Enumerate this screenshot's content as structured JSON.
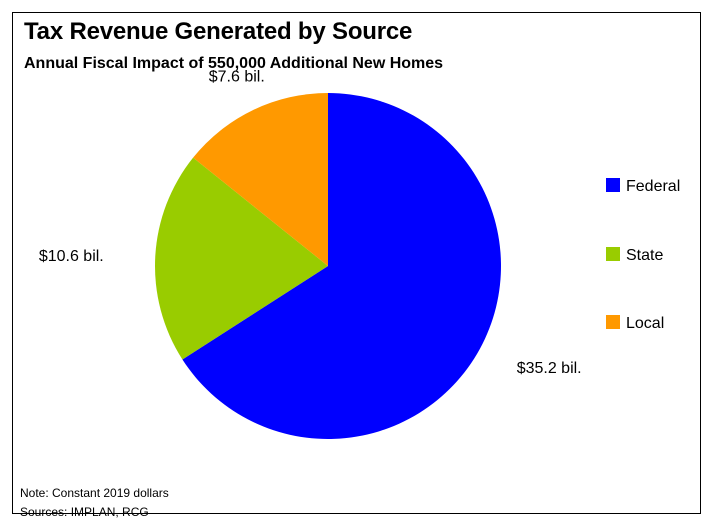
{
  "title": "Tax Revenue Generated by Source",
  "subtitle": "Annual Fiscal Impact of 550,000 Additional New Homes",
  "note": "Note: Constant 2019 dollars",
  "sources": "Sources: IMPLAN, RCG",
  "chart_data": {
    "type": "pie",
    "title": "Tax Revenue Generated by Source",
    "subtitle": "Annual Fiscal Impact of 550,000 Additional New Homes",
    "categories": [
      "Federal",
      "State",
      "Local"
    ],
    "values": [
      35.2,
      10.6,
      7.6
    ],
    "labels": [
      "$35.2 bil.",
      "$10.6 bil.",
      "$7.6 bil."
    ],
    "colors": [
      "#0000ff",
      "#99cc00",
      "#ff9900"
    ],
    "legend": {
      "entries": [
        "Federal",
        "State",
        "Local"
      ],
      "position": "right"
    },
    "notes": [
      "Note: Constant 2019 dollars",
      "Sources: IMPLAN, RCG"
    ]
  }
}
